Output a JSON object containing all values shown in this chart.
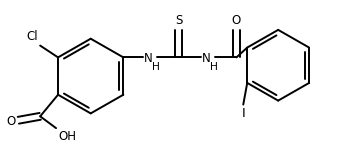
{
  "bg": "#ffffff",
  "lc": "#000000",
  "lw": 1.4,
  "fs": 8.5,
  "figsize": [
    3.64,
    1.58
  ],
  "dpi": 100,
  "xlim": [
    0,
    364
  ],
  "ylim": [
    0,
    158
  ]
}
